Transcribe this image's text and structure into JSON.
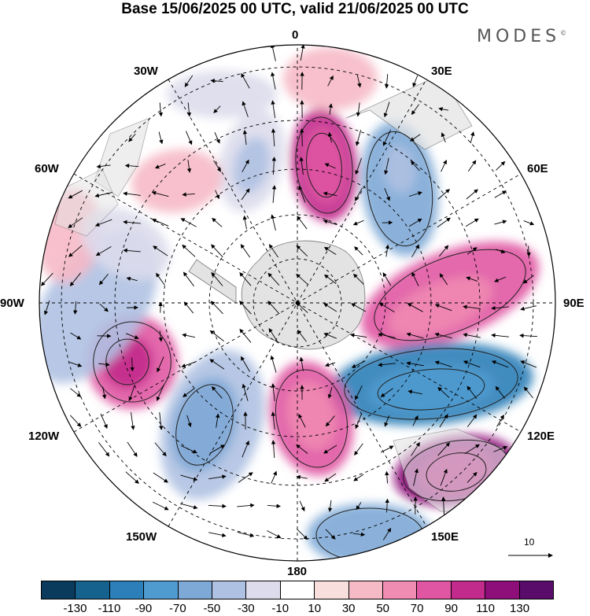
{
  "header": {
    "title": "Base 15/06/2025 00 UTC, valid 21/06/2025 00 UTC",
    "brand": "MODES"
  },
  "map": {
    "projection": "south polar stereographic",
    "longitude_labels": {
      "l0": "0",
      "l30e": "30E",
      "l60e": "60E",
      "l90e": "90E",
      "l120e": "120E",
      "l150e": "150E",
      "l180": "180",
      "l150w": "150W",
      "l120w": "120W",
      "l90w": "90W",
      "l60w": "60W",
      "l30w": "30W"
    },
    "land_color": "#e3e3e3",
    "ocean_color": "#ffffff",
    "vector_reference": "10"
  },
  "colorbar": {
    "colors": [
      "#0b3b5c",
      "#15628f",
      "#2c7fb8",
      "#4f9bd0",
      "#7ea9d6",
      "#afc1e2",
      "#dcdcec",
      "#ffffff",
      "#f9dede",
      "#f6b9c6",
      "#f08bb2",
      "#e056a3",
      "#c22a8c",
      "#8f0f7a",
      "#5a0c6b"
    ],
    "labels": [
      "-130",
      "-110",
      "-90",
      "-70",
      "-50",
      "-30",
      "-10",
      "10",
      "30",
      "50",
      "70",
      "90",
      "110",
      "130"
    ]
  },
  "anomaly_features": [
    {
      "type": "positive",
      "level": 90,
      "region": "near 0 longitude, mid-latitudes"
    },
    {
      "type": "negative",
      "level": -70,
      "region": "30E sector"
    },
    {
      "type": "positive",
      "level": 70,
      "region": "75-90E sector"
    },
    {
      "type": "negative",
      "level": -110,
      "region": "105-120E sector"
    },
    {
      "type": "positive",
      "level": 110,
      "region": "south of Australia, 135E"
    },
    {
      "type": "negative",
      "level": -70,
      "region": "165E sector"
    },
    {
      "type": "positive",
      "level": 70,
      "region": "Ross Sea, 170W"
    },
    {
      "type": "negative",
      "level": -50,
      "region": "140W sector"
    },
    {
      "type": "positive",
      "level": 90,
      "region": "110W sector"
    },
    {
      "type": "negative",
      "level": -50,
      "region": "80-90W sector"
    },
    {
      "type": "negative",
      "level": -50,
      "region": "20W sector"
    },
    {
      "type": "positive",
      "level": 30,
      "region": "50W sector"
    }
  ]
}
